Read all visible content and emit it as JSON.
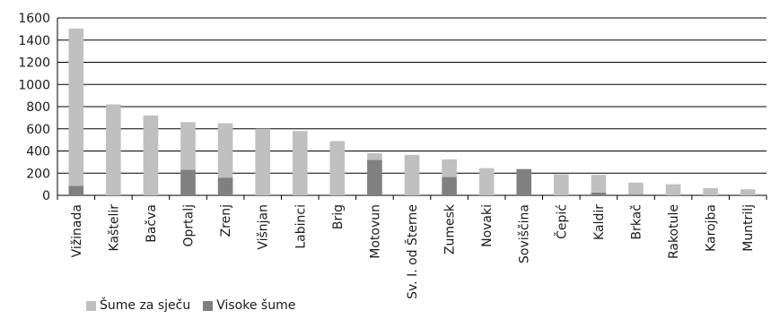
{
  "chart_data": {
    "type": "bar",
    "stacked": true,
    "categories": [
      "Vižinada",
      "Kaštelir",
      "Bačva",
      "Oprtalj",
      "Zrenj",
      "Višnjan",
      "Labinci",
      "Brig",
      "Motovun",
      "Sv. I. od Šterne",
      "Zumesk",
      "Novaki",
      "Soviščina",
      "Čepić",
      "Kaldir",
      "Brkač",
      "Rakotule",
      "Karojba",
      "Muntrilj"
    ],
    "series": [
      {
        "name": "Visoke šume",
        "color": "#808080",
        "values": [
          85,
          0,
          0,
          230,
          160,
          0,
          0,
          0,
          320,
          0,
          165,
          0,
          235,
          0,
          25,
          10,
          0,
          0,
          0
        ]
      },
      {
        "name": "Šume za sječu",
        "color": "#c0c0c0",
        "values": [
          1420,
          820,
          720,
          430,
          490,
          600,
          580,
          490,
          60,
          365,
          160,
          245,
          5,
          190,
          160,
          105,
          100,
          65,
          55
        ]
      }
    ],
    "ylim": [
      0,
      1600
    ],
    "yticks": [
      0,
      200,
      400,
      600,
      800,
      1000,
      1200,
      1400,
      1600
    ],
    "grid": true,
    "legend_position": "bottom-left"
  },
  "legend": {
    "items": [
      {
        "label": "Šume za sječu",
        "color": "#c0c0c0"
      },
      {
        "label": "Visoke šume",
        "color": "#808080"
      }
    ]
  }
}
